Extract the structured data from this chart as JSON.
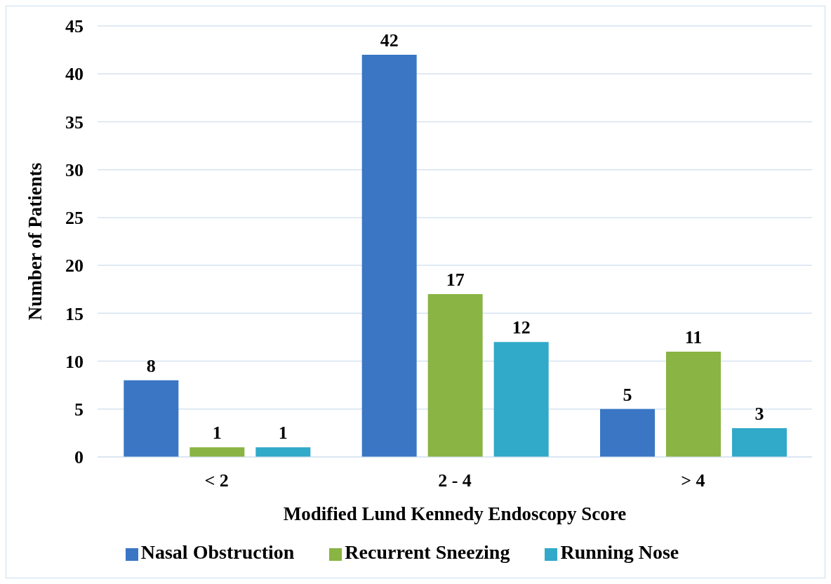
{
  "chart_data": {
    "type": "bar",
    "xlabel": "Modified Lund Kennedy Endoscopy Score",
    "ylabel": "Number of Patients",
    "categories": [
      "< 2",
      "2 - 4",
      "> 4"
    ],
    "series": [
      {
        "name": "Nasal Obstruction",
        "color": "#3a76c4",
        "values": [
          8,
          42,
          5
        ]
      },
      {
        "name": "Recurrent Sneezing",
        "color": "#8ab443",
        "values": [
          1,
          17,
          11
        ]
      },
      {
        "name": "Running Nose",
        "color": "#31a9c9",
        "values": [
          1,
          12,
          3
        ]
      }
    ],
    "ylim": [
      0,
      45
    ],
    "yticks": [
      0,
      5,
      10,
      15,
      20,
      25,
      30,
      35,
      40,
      45
    ],
    "grid": "y",
    "legend": "bottom",
    "data_labels": true
  }
}
